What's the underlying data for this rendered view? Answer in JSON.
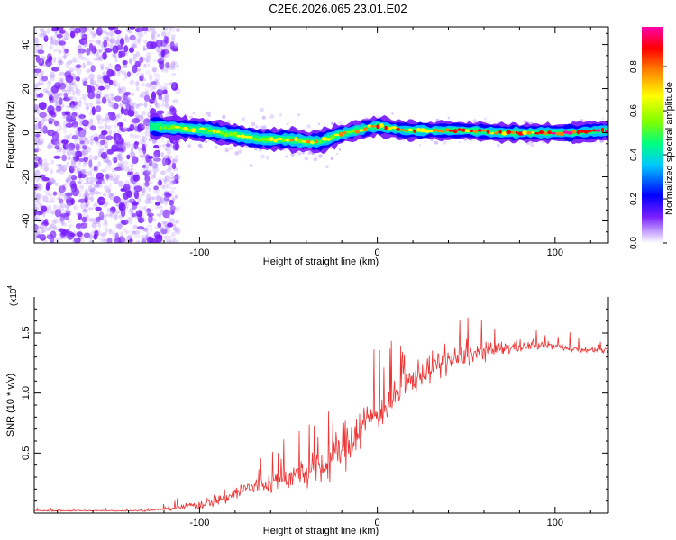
{
  "title": "C2E6.2026.065.23.01.E02",
  "colors": {
    "snr_line": "#ee3333",
    "cloud": "#7a3cff",
    "axis": "#000000"
  },
  "chart_data": [
    {
      "type": "heatmap",
      "name": "spectrogram",
      "xlabel": "Height of straight line (km)",
      "ylabel": "Frequency (Hz)",
      "xlim": [
        -193,
        130
      ],
      "ylim": [
        -50,
        48
      ],
      "xticks": [
        -100,
        0,
        100
      ],
      "xtick_labels": [
        "-100",
        "0",
        "100"
      ],
      "yticks": [
        -40,
        -20,
        0,
        20,
        40
      ],
      "ytick_labels": [
        "-40",
        "-20",
        "0",
        "20",
        "40"
      ],
      "noise_region_x": [
        -193,
        -118
      ],
      "signal_start_x": -128,
      "signal_center_hz": [
        [
          -128,
          3
        ],
        [
          -110,
          2
        ],
        [
          -95,
          1
        ],
        [
          -80,
          -1
        ],
        [
          -65,
          -3
        ],
        [
          -50,
          -3
        ],
        [
          -40,
          -4
        ],
        [
          -32,
          -4
        ],
        [
          -22,
          -1
        ],
        [
          -12,
          1
        ],
        [
          0,
          3
        ],
        [
          15,
          1
        ],
        [
          30,
          1
        ],
        [
          50,
          1
        ],
        [
          70,
          0
        ],
        [
          90,
          0
        ],
        [
          110,
          0
        ],
        [
          130,
          1
        ]
      ],
      "colorbar": {
        "label": "Normalized spectral amplitude",
        "ticks": [
          0.0,
          0.2,
          0.4,
          0.6,
          0.8
        ],
        "tick_labels": [
          "0.0",
          "0.2",
          "0.4",
          "0.6",
          "0.8"
        ],
        "range": [
          0,
          0.98
        ],
        "colormap": [
          "#ffffff",
          "#c7a6ff",
          "#7a1fff",
          "#0000ff",
          "#00c8ff",
          "#00ff80",
          "#7fff00",
          "#ffff00",
          "#ff8000",
          "#ff0000",
          "#ff00aa"
        ]
      }
    },
    {
      "type": "line",
      "name": "snr",
      "xlabel": "Height of straight line (km)",
      "ylabel": "SNR (10 * v/v)",
      "y_exponent": "(x10",
      "y_exponent_power": "4",
      "xlim": [
        -193,
        130
      ],
      "ylim": [
        0,
        1.8
      ],
      "xticks": [
        -100,
        0,
        100
      ],
      "xtick_labels": [
        "-100",
        "0",
        "100"
      ],
      "yticks": [
        0.5,
        1.0,
        1.5
      ],
      "ytick_labels": [
        "0.5",
        "1.0",
        "1.5"
      ],
      "trend": [
        [
          -193,
          0.02
        ],
        [
          -130,
          0.02
        ],
        [
          -115,
          0.04
        ],
        [
          -100,
          0.07
        ],
        [
          -85,
          0.13
        ],
        [
          -75,
          0.2
        ],
        [
          -60,
          0.25
        ],
        [
          -45,
          0.32
        ],
        [
          -30,
          0.38
        ],
        [
          -20,
          0.55
        ],
        [
          -12,
          0.68
        ],
        [
          -5,
          0.78
        ],
        [
          5,
          0.88
        ],
        [
          15,
          1.05
        ],
        [
          25,
          1.18
        ],
        [
          40,
          1.27
        ],
        [
          55,
          1.33
        ],
        [
          75,
          1.38
        ],
        [
          95,
          1.4
        ],
        [
          110,
          1.37
        ],
        [
          130,
          1.35
        ]
      ],
      "noise_amplitude": [
        [
          -193,
          0.01
        ],
        [
          -125,
          0.01
        ],
        [
          -110,
          0.04
        ],
        [
          -80,
          0.12
        ],
        [
          -50,
          0.18
        ],
        [
          -25,
          0.3
        ],
        [
          -15,
          0.4
        ],
        [
          0,
          0.25
        ],
        [
          30,
          0.22
        ],
        [
          60,
          0.14
        ],
        [
          90,
          0.06
        ],
        [
          130,
          0.04
        ]
      ]
    }
  ]
}
